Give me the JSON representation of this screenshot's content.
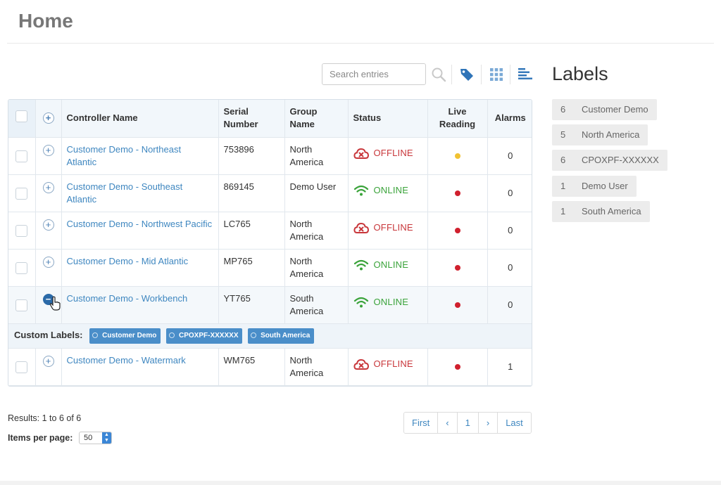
{
  "page": {
    "title": "Home"
  },
  "toolbar": {
    "search_placeholder": "Search entries"
  },
  "table": {
    "headers": {
      "controller_name": "Controller Name",
      "serial_number": "Serial Number",
      "group_name": "Group Name",
      "status": "Status",
      "live_reading": "Live Reading",
      "alarms": "Alarms"
    },
    "rows": [
      {
        "name": "Customer Demo - Northeast Atlantic",
        "serial": "753896",
        "group": "North America",
        "status": "OFFLINE",
        "live_color": "#f1c232",
        "alarms": "0"
      },
      {
        "name": "Customer Demo - Southeast Atlantic",
        "serial": "869145",
        "group": "Demo User",
        "status": "ONLINE",
        "live_color": "#d0202e",
        "alarms": "0"
      },
      {
        "name": "Customer Demo - Northwest Pacific",
        "serial": "LC765",
        "group": "North America",
        "status": "OFFLINE",
        "live_color": "#d0202e",
        "alarms": "0"
      },
      {
        "name": "Customer Demo - Mid Atlantic",
        "serial": "MP765",
        "group": "North America",
        "status": "ONLINE",
        "live_color": "#d0202e",
        "alarms": "0"
      },
      {
        "name": "Customer Demo - Workbench",
        "serial": "YT765",
        "group": "South America",
        "status": "ONLINE",
        "live_color": "#d0202e",
        "alarms": "0"
      },
      {
        "name": "Customer Demo - Watermark",
        "serial": "WM765",
        "group": "North America",
        "status": "OFFLINE",
        "live_color": "#d0202e",
        "alarms": "1"
      }
    ],
    "custom_labels": {
      "title": "Custom Labels:",
      "tags": [
        "Customer Demo",
        "CPOXPF-XXXXXX",
        "South America"
      ]
    }
  },
  "footer": {
    "results": "Results: 1 to 6 of 6",
    "items_per_page_label": "Items per page:",
    "items_per_page_value": "50",
    "pager": {
      "first": "First",
      "prev": "‹",
      "page": "1",
      "next": "›",
      "last": "Last"
    }
  },
  "labels_panel": {
    "title": "Labels",
    "items": [
      {
        "count": "6",
        "name": "Customer Demo"
      },
      {
        "count": "5",
        "name": "North America"
      },
      {
        "count": "6",
        "name": "CPOXPF-XXXXXX"
      },
      {
        "count": "1",
        "name": "Demo User"
      },
      {
        "count": "1",
        "name": "South America"
      }
    ]
  },
  "colors": {
    "link": "#3f87c0",
    "offline": "#c8363a",
    "online": "#3aa33a",
    "tag_bg": "#4a8ec9",
    "accent": "#2b6aa8"
  },
  "icons": {
    "search": "search-icon",
    "tag": "tag-icon",
    "grid": "grid-view-icon",
    "list": "list-view-icon",
    "offline": "cloud-offline-icon",
    "online": "wifi-icon"
  }
}
